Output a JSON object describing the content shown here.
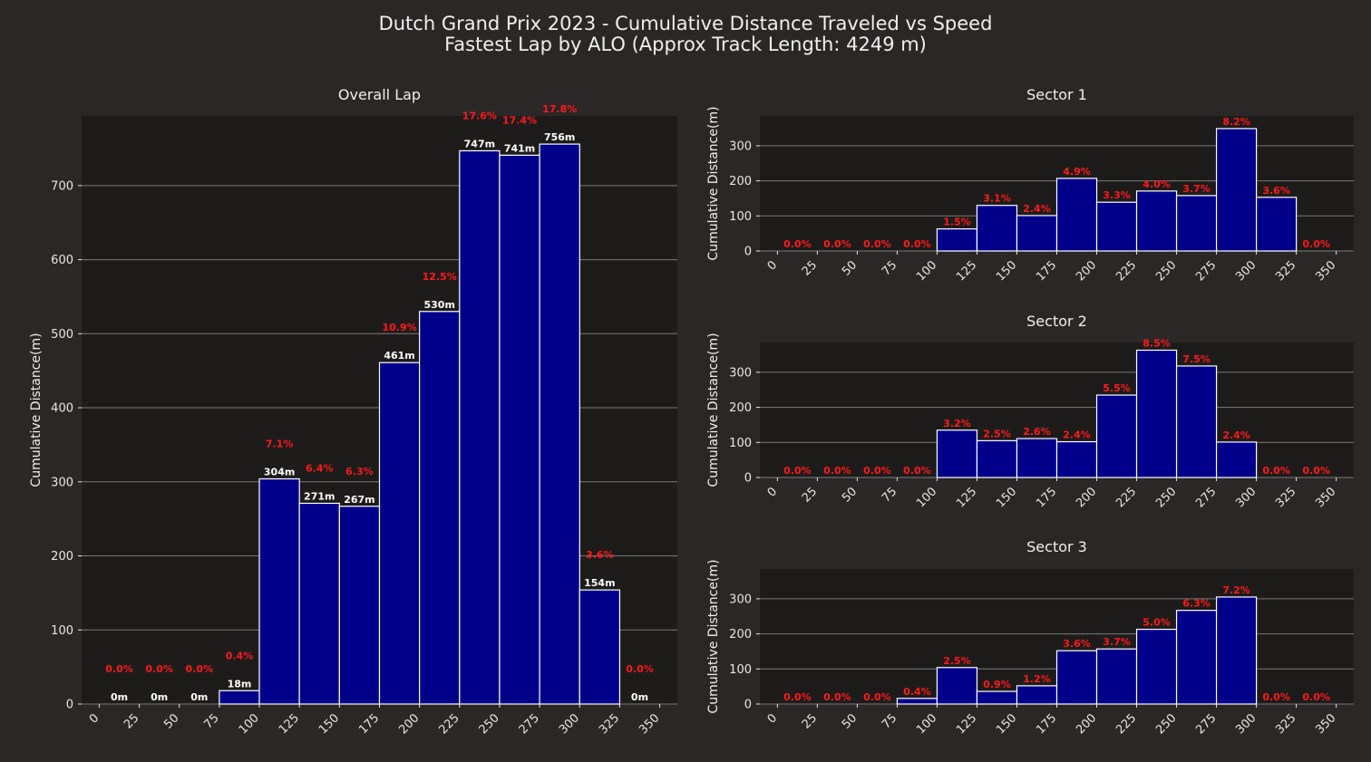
{
  "title_line1": "Dutch Grand Prix 2023 - Cumulative Distance Traveled vs Speed",
  "title_line2": "Fastest Lap by ALO (Approx Track Length: 4249 m)",
  "colors": {
    "background": "#2b2726",
    "plot_bg": "#1e1c1b",
    "bar": "#00008b",
    "bar_edge": "#ffffff",
    "percent_label": "#ff1a1a"
  },
  "chart_data": [
    {
      "type": "bar",
      "title": "Overall Lap",
      "xlabel": "",
      "ylabel": "Cumulative Distance(m)",
      "bin_edges": [
        0,
        25,
        50,
        75,
        100,
        125,
        150,
        175,
        200,
        225,
        250,
        275,
        300,
        325,
        350
      ],
      "x_ticks": [
        0,
        25,
        50,
        75,
        100,
        125,
        150,
        175,
        200,
        225,
        250,
        275,
        300,
        325,
        350
      ],
      "y_ticks": [
        0,
        100,
        200,
        300,
        400,
        500,
        600,
        700
      ],
      "ylim": [
        0,
        794
      ],
      "values": [
        0,
        0,
        0,
        18,
        304,
        271,
        267,
        461,
        530,
        747,
        741,
        756,
        154,
        0
      ],
      "value_labels": [
        "0m",
        "0m",
        "0m",
        "18m",
        "304m",
        "271m",
        "267m",
        "461m",
        "530m",
        "747m",
        "741m",
        "756m",
        "154m",
        "0m"
      ],
      "percent_labels": [
        "0.0%",
        "0.0%",
        "0.0%",
        "0.4%",
        "7.1%",
        "6.4%",
        "6.3%",
        "10.9%",
        "12.5%",
        "17.6%",
        "17.4%",
        "17.8%",
        "3.6%",
        "0.0%"
      ],
      "grid": true
    },
    {
      "type": "bar",
      "title": "Sector 1",
      "xlabel": "",
      "ylabel": "Cumulative Distance(m)",
      "bin_edges": [
        0,
        25,
        50,
        75,
        100,
        125,
        150,
        175,
        200,
        225,
        250,
        275,
        300,
        325,
        350
      ],
      "x_ticks": [
        0,
        25,
        50,
        75,
        100,
        125,
        150,
        175,
        200,
        225,
        250,
        275,
        300,
        325,
        350
      ],
      "y_ticks": [
        0,
        100,
        200,
        300
      ],
      "ylim": [
        0,
        385
      ],
      "values": [
        0,
        0,
        0,
        0,
        63,
        130,
        101,
        207,
        139,
        171,
        158,
        349,
        153,
        0
      ],
      "percent_labels": [
        "0.0%",
        "0.0%",
        "0.0%",
        "0.0%",
        "1.5%",
        "3.1%",
        "2.4%",
        "4.9%",
        "3.3%",
        "4.0%",
        "3.7%",
        "8.2%",
        "3.6%",
        "0.0%"
      ],
      "grid": true
    },
    {
      "type": "bar",
      "title": "Sector 2",
      "xlabel": "",
      "ylabel": "Cumulative Distance(m)",
      "bin_edges": [
        0,
        25,
        50,
        75,
        100,
        125,
        150,
        175,
        200,
        225,
        250,
        275,
        300,
        325,
        350
      ],
      "x_ticks": [
        0,
        25,
        50,
        75,
        100,
        125,
        150,
        175,
        200,
        225,
        250,
        275,
        300,
        325,
        350
      ],
      "y_ticks": [
        0,
        100,
        200,
        300
      ],
      "ylim": [
        0,
        385
      ],
      "values": [
        0,
        0,
        0,
        0,
        135,
        105,
        111,
        102,
        235,
        363,
        318,
        101,
        0,
        0
      ],
      "percent_labels": [
        "0.0%",
        "0.0%",
        "0.0%",
        "0.0%",
        "3.2%",
        "2.5%",
        "2.6%",
        "2.4%",
        "5.5%",
        "8.5%",
        "7.5%",
        "2.4%",
        "0.0%",
        "0.0%"
      ],
      "grid": true
    },
    {
      "type": "bar",
      "title": "Sector 3",
      "xlabel": "",
      "ylabel": "Cumulative Distance(m)",
      "bin_edges": [
        0,
        25,
        50,
        75,
        100,
        125,
        150,
        175,
        200,
        225,
        250,
        275,
        300,
        325,
        350
      ],
      "x_ticks": [
        0,
        25,
        50,
        75,
        100,
        125,
        150,
        175,
        200,
        225,
        250,
        275,
        300,
        325,
        350
      ],
      "y_ticks": [
        0,
        100,
        200,
        300
      ],
      "ylim": [
        0,
        385
      ],
      "values": [
        0,
        0,
        0,
        16,
        104,
        36,
        52,
        152,
        157,
        213,
        267,
        305,
        0,
        0
      ],
      "percent_labels": [
        "0.0%",
        "0.0%",
        "0.0%",
        "0.4%",
        "2.5%",
        "0.9%",
        "1.2%",
        "3.6%",
        "3.7%",
        "5.0%",
        "6.3%",
        "7.2%",
        "0.0%",
        "0.0%"
      ],
      "grid": true
    }
  ]
}
